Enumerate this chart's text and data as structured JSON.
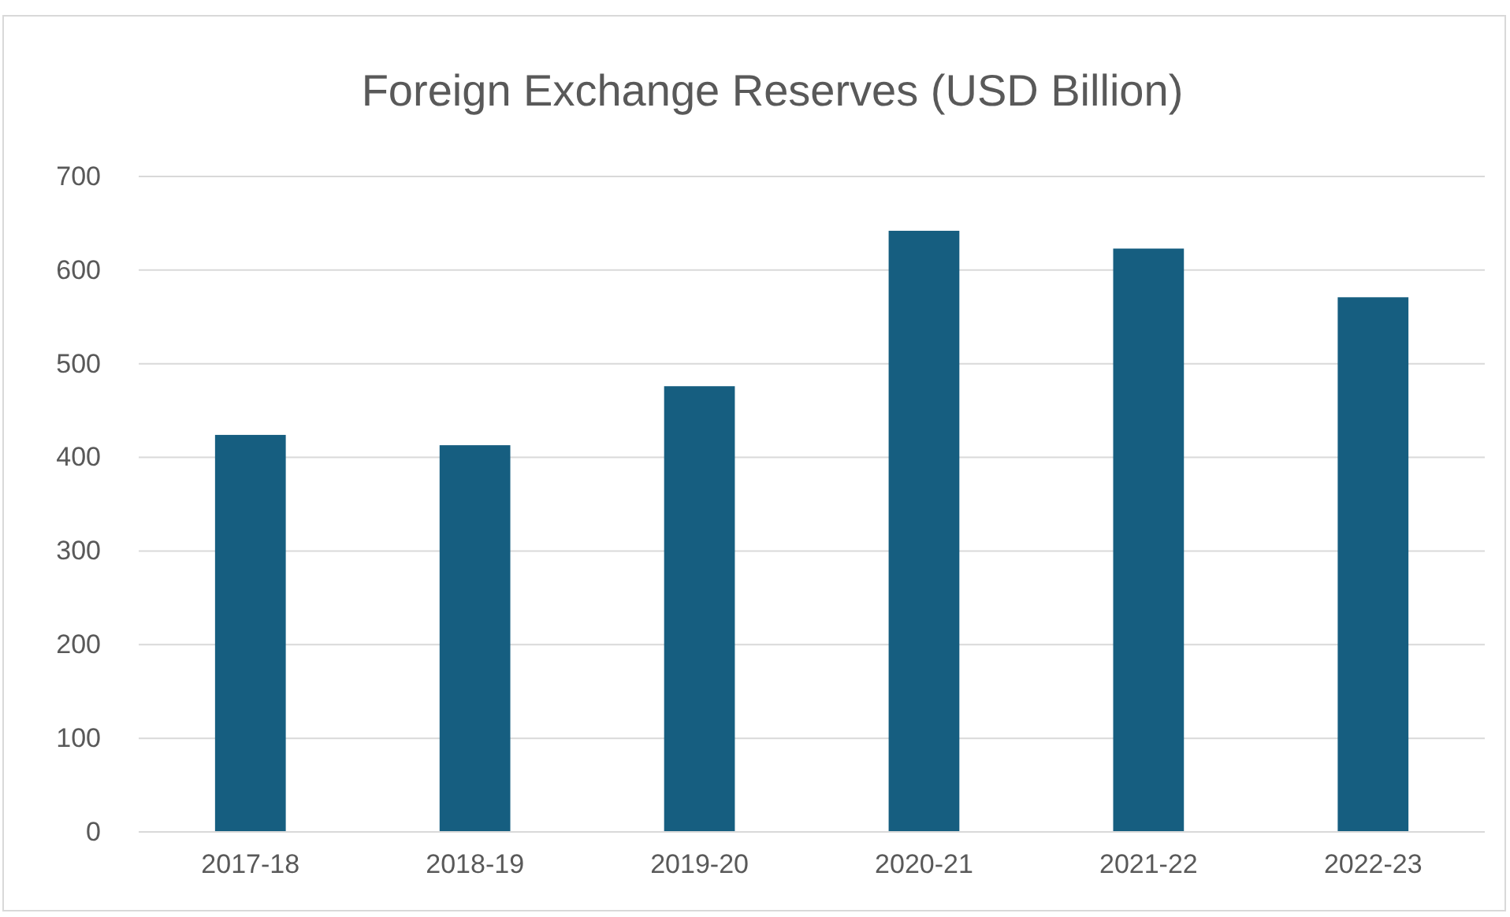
{
  "chart_data": {
    "type": "bar",
    "title": "Foreign Exchange Reserves (USD Billion)",
    "categories": [
      "2017-18",
      "2018-19",
      "2019-20",
      "2020-21",
      "2021-22",
      "2022-23"
    ],
    "values": [
      424,
      413,
      476,
      642,
      623,
      571
    ],
    "color": "#165e80",
    "ylim": [
      0,
      700
    ],
    "yticks": [
      0,
      100,
      200,
      300,
      400,
      500,
      600,
      700
    ],
    "grid": "y"
  }
}
